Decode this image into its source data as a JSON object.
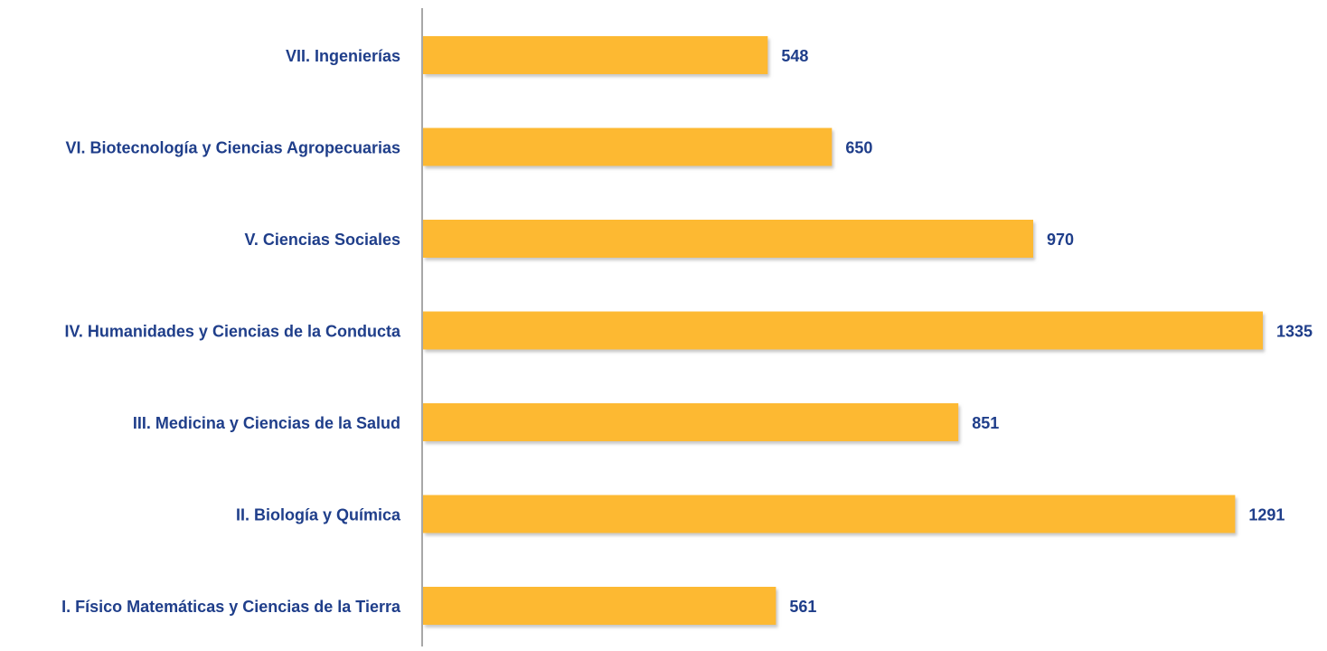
{
  "chart_data": {
    "type": "bar",
    "orientation": "horizontal",
    "categories": [
      "VII. Ingenierías",
      "VI. Biotecnología y Ciencias Agropecuarias",
      "V. Ciencias Sociales",
      "IV. Humanidades y Ciencias de la Conducta",
      "III. Medicina y Ciencias de la Salud",
      "II. Biología y Química",
      "I. Físico Matemáticas y Ciencias de la Tierra"
    ],
    "values": [
      548,
      650,
      970,
      1335,
      851,
      1291,
      561
    ],
    "value_labels": [
      "548",
      "650",
      "970",
      "1335",
      "851",
      "1291",
      "561"
    ],
    "title": "",
    "xlabel": "",
    "ylabel": "",
    "xlim": [
      0,
      1335
    ],
    "grid": false,
    "legend": "none",
    "data_labels": true,
    "colors": {
      "bar": "#FDB933",
      "bar_shadow": "#c9c9c9",
      "text": "#1F3E8A",
      "axis": "#8c8c8c"
    }
  }
}
